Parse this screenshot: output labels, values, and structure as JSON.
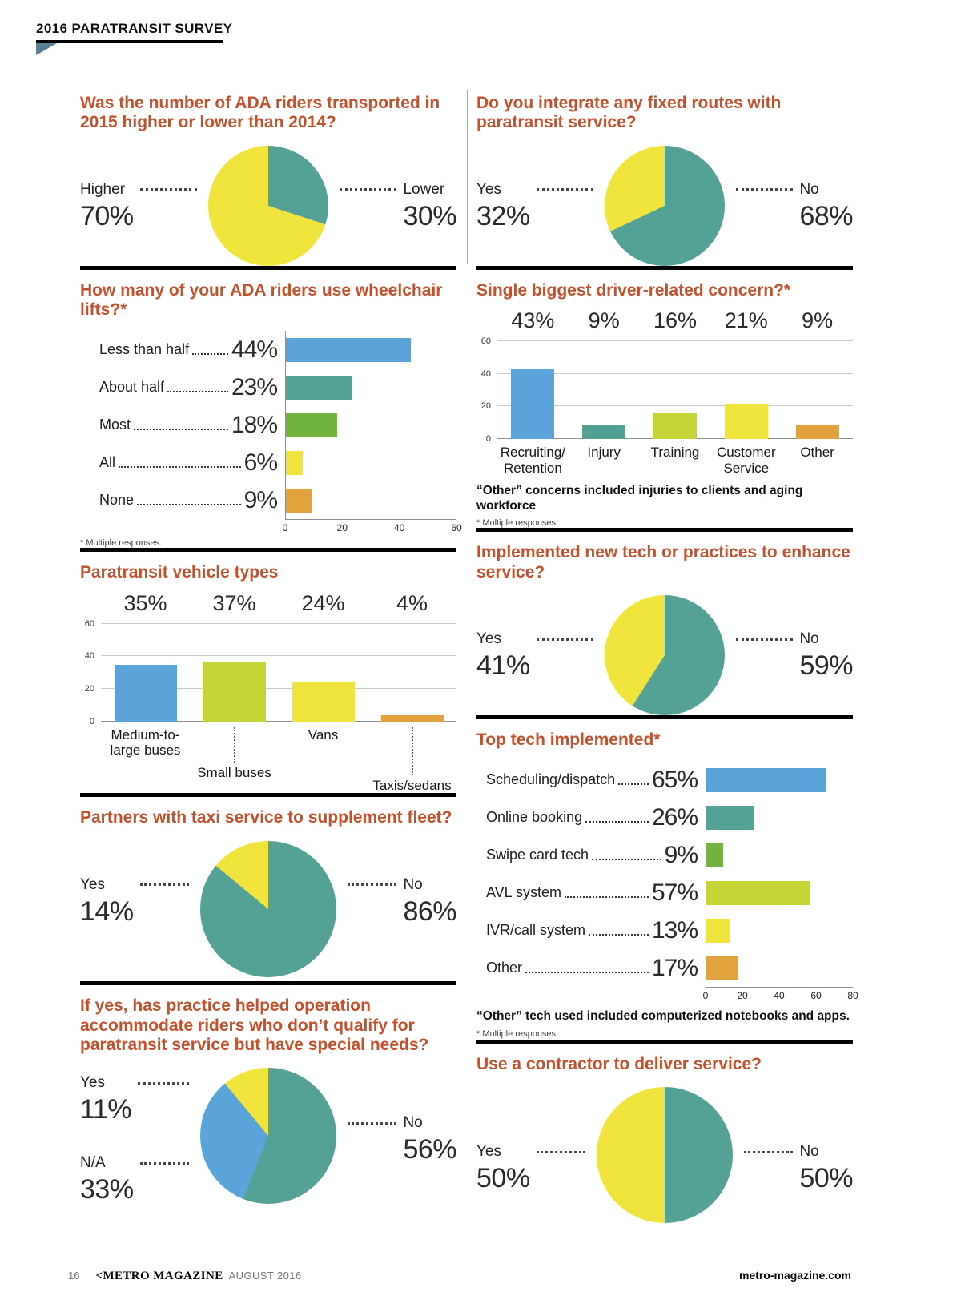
{
  "page": {
    "header": {
      "title": "2016 PARATRANSIT SURVEY"
    },
    "footer": {
      "page_number": "16",
      "logo": "<METRO MAGAZINE",
      "issue": "AUGUST 2016",
      "website": "metro-magazine.com"
    }
  },
  "colors": {
    "yellow": "#f1e43c",
    "teal": "#54a295",
    "blue": "#5ba4da",
    "green": "#72b23e",
    "lime": "#c3d434",
    "orange": "#e3a33c",
    "heading": "#c2512d",
    "flag": "#5a7e97"
  },
  "chart_data": [
    {
      "type": "pie",
      "title": "Was the number of ADA riders transported in 2015 higher or lower than 2014?",
      "slices": [
        {
          "label": "Lower",
          "value": 30,
          "color": "teal"
        },
        {
          "label": "Higher",
          "value": 70,
          "color": "yellow"
        }
      ],
      "callouts": {
        "left": [
          {
            "label": "Higher",
            "value": "70%"
          }
        ],
        "right": [
          {
            "label": "Lower",
            "value": "30%"
          }
        ]
      }
    },
    {
      "type": "bar",
      "orientation": "horizontal",
      "title": "How many of your ADA riders use wheelchair lifts?*",
      "rows": [
        {
          "label": "Less than half",
          "value": 44,
          "color": "blue"
        },
        {
          "label": "About half",
          "value": 23,
          "color": "teal"
        },
        {
          "label": "Most",
          "value": 18,
          "color": "green"
        },
        {
          "label": "All",
          "value": 6,
          "color": "yellow"
        },
        {
          "label": "None",
          "value": 9,
          "color": "orange"
        }
      ],
      "xmax": 60,
      "ticks": [
        0,
        20,
        40,
        60
      ],
      "footnote_small": "* Multiple responses."
    },
    {
      "type": "bar",
      "orientation": "vertical",
      "title": "Paratransit vehicle types",
      "categories": [
        {
          "label": "Medium-to-\nlarge buses",
          "value": 35,
          "color": "blue"
        },
        {
          "label": "Small buses",
          "value": 37,
          "color": "lime",
          "leader": 44
        },
        {
          "label": "Vans",
          "value": 24,
          "color": "yellow"
        },
        {
          "label": "Taxis/sedans",
          "value": 4,
          "color": "orange",
          "leader": 60
        }
      ],
      "ymax": 60,
      "ticks": [
        0,
        20,
        40,
        60
      ]
    },
    {
      "type": "pie",
      "title": "Partners with taxi service to supplement fleet?",
      "slices": [
        {
          "label": "No",
          "value": 86,
          "color": "teal"
        },
        {
          "label": "Yes",
          "value": 14,
          "color": "yellow"
        }
      ],
      "callouts": {
        "left": [
          {
            "label": "Yes",
            "value": "14%"
          }
        ],
        "right": [
          {
            "label": "No",
            "value": "86%"
          }
        ]
      }
    },
    {
      "type": "pie",
      "title": "If yes, has practice helped operation accommodate riders who don’t qualify for paratransit service but have special needs?",
      "slices": [
        {
          "label": "No",
          "value": 56,
          "color": "teal"
        },
        {
          "label": "N/A",
          "value": 33,
          "color": "blue"
        },
        {
          "label": "Yes",
          "value": 11,
          "color": "yellow"
        }
      ],
      "callouts": {
        "left": [
          {
            "label": "Yes",
            "value": "11%"
          },
          {
            "label": "N/A",
            "value": "33%"
          }
        ],
        "right": [
          {
            "label": "No",
            "value": "56%"
          }
        ]
      }
    },
    {
      "type": "pie",
      "title": "Do you integrate any fixed routes with paratransit service?",
      "slices": [
        {
          "label": "No",
          "value": 68,
          "color": "teal"
        },
        {
          "label": "Yes",
          "value": 32,
          "color": "yellow"
        }
      ],
      "callouts": {
        "left": [
          {
            "label": "Yes",
            "value": "32%"
          }
        ],
        "right": [
          {
            "label": "No",
            "value": "68%"
          }
        ]
      }
    },
    {
      "type": "bar",
      "orientation": "vertical",
      "title": "Single biggest driver-related concern?*",
      "categories": [
        {
          "label": "Recruiting/\nRetention",
          "value": 43,
          "color": "blue"
        },
        {
          "label": "Injury",
          "value": 9,
          "color": "teal"
        },
        {
          "label": "Training",
          "value": 16,
          "color": "lime"
        },
        {
          "label": "Customer\nService",
          "value": 21,
          "color": "yellow"
        },
        {
          "label": "Other",
          "value": 9,
          "color": "orange"
        }
      ],
      "ymax": 60,
      "ticks": [
        0,
        20,
        40,
        60
      ],
      "footnote_bold": "“Other” concerns included injuries to clients and aging workforce",
      "footnote_small": "* Multiple responses."
    },
    {
      "type": "pie",
      "title": "Implemented new tech or practices to enhance service?",
      "slices": [
        {
          "label": "No",
          "value": 59,
          "color": "teal"
        },
        {
          "label": "Yes",
          "value": 41,
          "color": "yellow"
        }
      ],
      "callouts": {
        "left": [
          {
            "label": "Yes",
            "value": "41%"
          }
        ],
        "right": [
          {
            "label": "No",
            "value": "59%"
          }
        ]
      }
    },
    {
      "type": "bar",
      "orientation": "horizontal",
      "title": "Top tech implemented*",
      "rows": [
        {
          "label": "Scheduling/dispatch",
          "value": 65,
          "color": "blue"
        },
        {
          "label": "Online booking",
          "value": 26,
          "color": "teal"
        },
        {
          "label": "Swipe card tech",
          "value": 9,
          "color": "green"
        },
        {
          "label": "AVL system",
          "value": 57,
          "color": "lime"
        },
        {
          "label": "IVR/call system",
          "value": 13,
          "color": "yellow"
        },
        {
          "label": "Other",
          "value": 17,
          "color": "orange"
        }
      ],
      "xmax": 80,
      "ticks": [
        0,
        20,
        40,
        60,
        80
      ],
      "footnote_bold": "“Other” tech used included computerized notebooks and apps.",
      "footnote_small": "* Multiple responses."
    },
    {
      "type": "pie",
      "title": "Use a contractor to deliver service?",
      "slices": [
        {
          "label": "No",
          "value": 50,
          "color": "teal"
        },
        {
          "label": "Yes",
          "value": 50,
          "color": "yellow"
        }
      ],
      "callouts": {
        "left": [
          {
            "label": "Yes",
            "value": "50%"
          }
        ],
        "right": [
          {
            "label": "No",
            "value": "50%"
          }
        ]
      }
    }
  ]
}
